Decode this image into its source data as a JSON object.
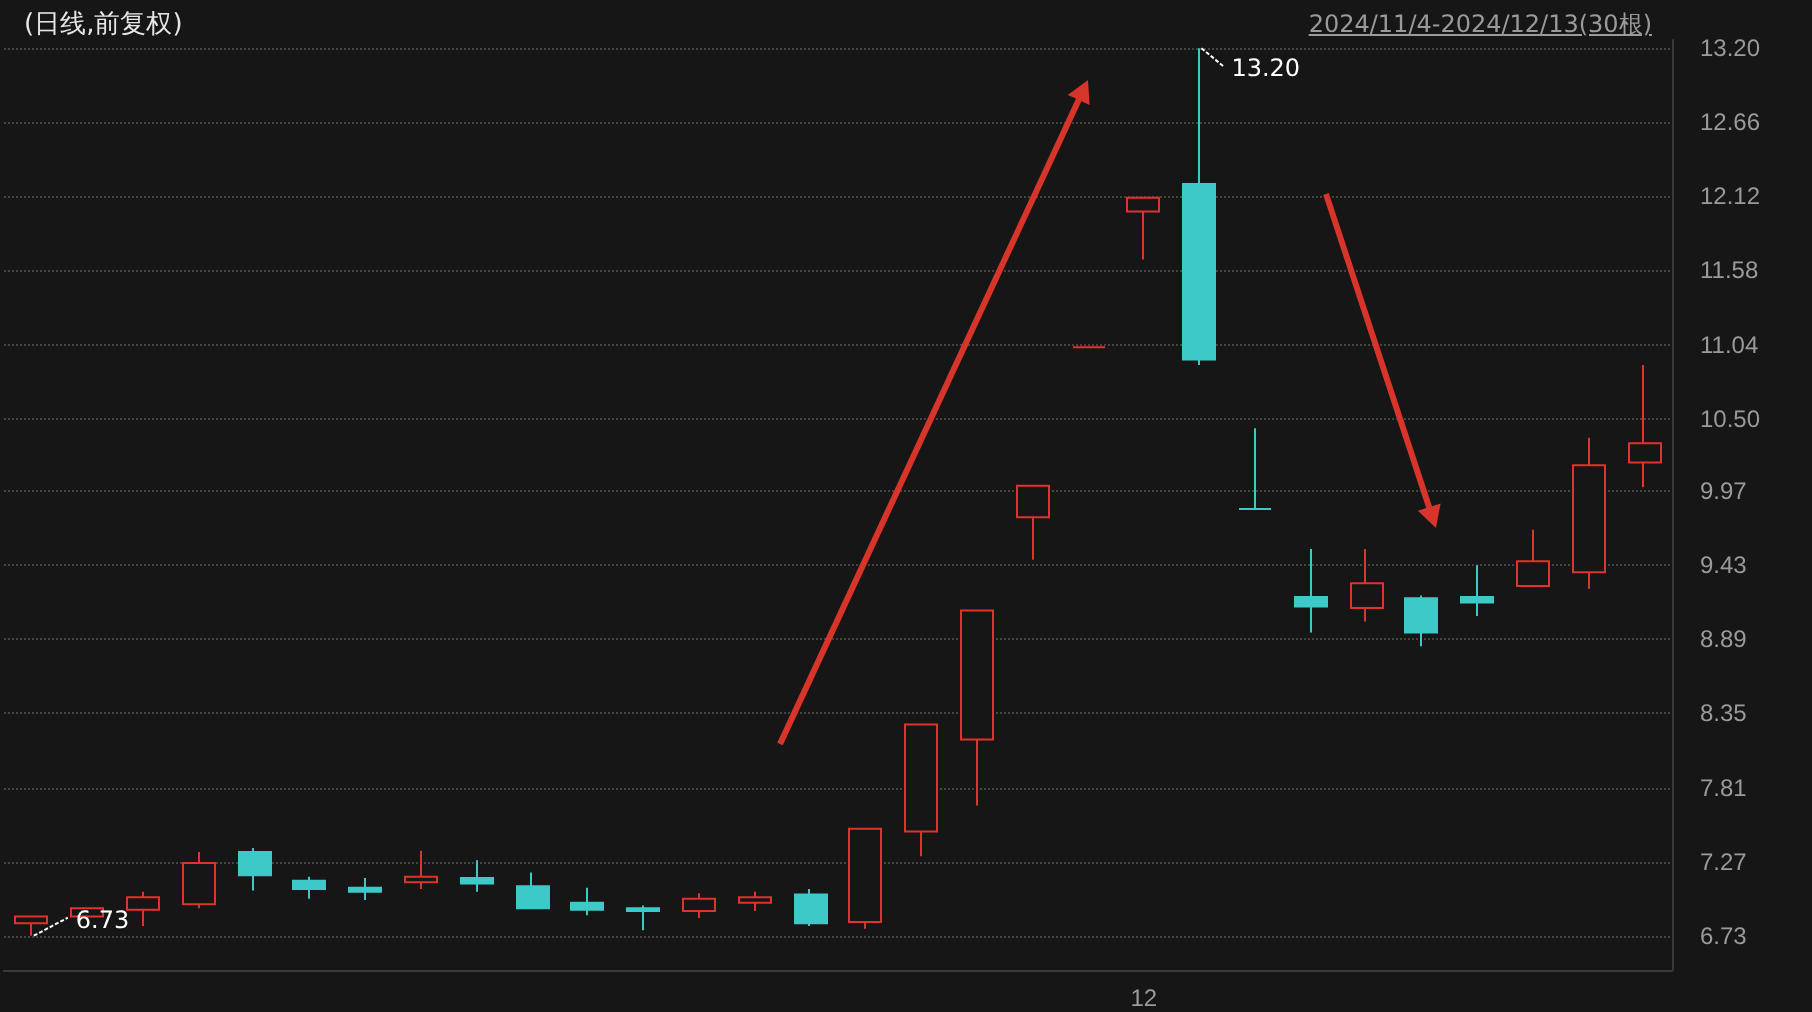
{
  "chart_data": {
    "type": "candlestick",
    "title": "(日线,前复权)",
    "subtitle": "2024/11/4-2024/12/13(30根)",
    "categories": [
      null,
      null,
      null,
      null,
      null,
      null,
      null,
      null,
      null,
      null,
      null,
      null,
      null,
      null,
      null,
      null,
      null,
      null,
      null,
      null,
      "12",
      null,
      null,
      null,
      null,
      null,
      null,
      null,
      null,
      null
    ],
    "ohlc": [
      [
        6.82,
        6.87,
        6.73,
        6.87
      ],
      [
        6.87,
        6.93,
        6.86,
        6.93
      ],
      [
        6.92,
        7.05,
        6.8,
        7.01
      ],
      [
        6.96,
        7.34,
        6.93,
        7.26
      ],
      [
        7.34,
        7.37,
        7.06,
        7.17
      ],
      [
        7.13,
        7.16,
        7.0,
        7.07
      ],
      [
        7.08,
        7.15,
        6.99,
        7.05
      ],
      [
        7.12,
        7.35,
        7.07,
        7.16
      ],
      [
        7.15,
        7.28,
        7.05,
        7.11
      ],
      [
        7.09,
        7.19,
        6.93,
        6.93
      ],
      [
        6.97,
        7.08,
        6.88,
        6.92
      ],
      [
        6.93,
        6.95,
        6.77,
        6.91
      ],
      [
        6.91,
        7.04,
        6.86,
        7.0
      ],
      [
        6.97,
        7.05,
        6.91,
        7.01
      ],
      [
        7.03,
        7.07,
        6.8,
        6.82
      ],
      [
        6.83,
        7.51,
        6.78,
        7.51
      ],
      [
        7.49,
        8.27,
        7.31,
        8.27
      ],
      [
        8.16,
        9.1,
        7.68,
        9.1
      ],
      [
        9.78,
        10.01,
        9.47,
        10.01
      ],
      [
        11.02,
        11.02,
        11.02,
        11.02
      ],
      [
        12.01,
        12.11,
        11.66,
        12.11
      ],
      [
        12.21,
        13.2,
        10.89,
        10.93
      ],
      [
        9.84,
        10.43,
        9.84,
        9.84
      ],
      [
        9.2,
        9.55,
        8.94,
        9.13
      ],
      [
        9.12,
        9.55,
        9.02,
        9.3
      ],
      [
        9.19,
        9.21,
        8.84,
        8.94
      ],
      [
        9.2,
        9.43,
        9.06,
        9.16
      ],
      [
        9.28,
        9.69,
        9.28,
        9.46
      ],
      [
        9.38,
        10.36,
        9.26,
        10.16
      ],
      [
        10.18,
        10.89,
        10.0,
        10.32
      ]
    ],
    "colors": [
      "#e0332c",
      "#e0332c",
      "#e0332c",
      "#e0332c",
      "#3ec9c9",
      "#3ec9c9",
      "#3ec9c9",
      "#e0332c",
      "#3ec9c9",
      "#3ec9c9",
      "#3ec9c9",
      "#3ec9c9",
      "#e0332c",
      "#e0332c",
      "#3ec9c9",
      "#e0332c",
      "#e0332c",
      "#e0332c",
      "#e0332c",
      "#e0332c",
      "#e0332c",
      "#3ec9c9",
      "#3ec9c9",
      "#3ec9c9",
      "#e0332c",
      "#3ec9c9",
      "#3ec9c9",
      "#e0332c",
      "#e0332c",
      "#e0332c"
    ],
    "ylim": [
      6.48,
      13.26
    ],
    "yticks": [
      6.73,
      7.27,
      7.81,
      8.35,
      8.89,
      9.43,
      9.97,
      {
        "value": 10.5,
        "label": "10.50"
      },
      11.04,
      11.58,
      12.12,
      12.66,
      {
        "value": 13.2,
        "label": "13.20"
      }
    ],
    "grid": "y",
    "annotations": [
      "13.20",
      "6.73"
    ]
  }
}
